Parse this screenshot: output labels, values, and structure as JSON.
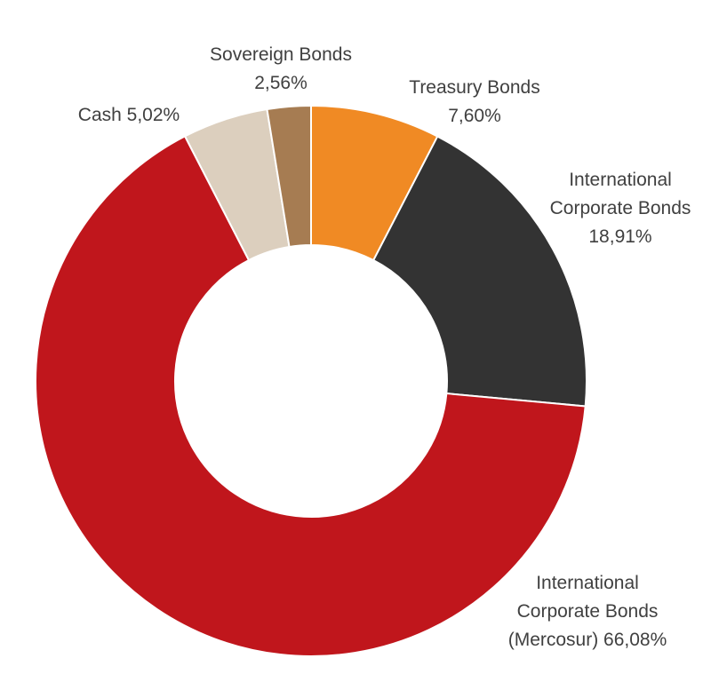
{
  "chart_data": {
    "type": "pie",
    "subtype": "donut",
    "slices": [
      {
        "category": "Treasury Bonds",
        "value": 7.6,
        "label_lines": [
          "Treasury Bonds",
          "7,60%"
        ],
        "color": "#f08a24"
      },
      {
        "category": "International Corporate Bonds",
        "value": 18.91,
        "label_lines": [
          "International",
          "Corporate Bonds",
          "18,91%"
        ],
        "color": "#333333"
      },
      {
        "category": "International Corporate Bonds (Mercosur)",
        "value": 66.08,
        "label_lines": [
          "International",
          "Corporate Bonds",
          "(Mercosur) 66,08%"
        ],
        "color": "#c0161c"
      },
      {
        "category": "Cash",
        "value": 5.02,
        "label_lines": [
          "Cash 5,02%"
        ],
        "color": "#dccfbe"
      },
      {
        "category": "Sovereign Bonds",
        "value": 2.56,
        "label_lines": [
          "Sovereign Bonds",
          "2,56%"
        ],
        "color": "#a67c52"
      }
    ],
    "start": "12 o'clock",
    "direction": "clockwise",
    "legend": "none",
    "labels": "outside slices",
    "title": ""
  }
}
